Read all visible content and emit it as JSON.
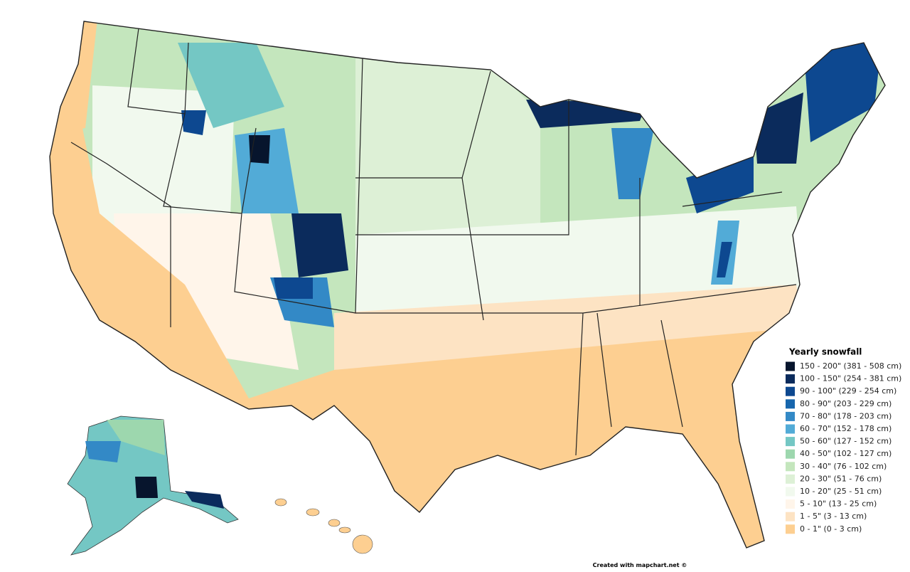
{
  "legend": {
    "title": "Yearly snowfall",
    "items": [
      {
        "label": "150 - 200\" (381 - 508 cm)",
        "color": "#07152d"
      },
      {
        "label": "100 - 150\" (254 - 381 cm)",
        "color": "#0b2b5c"
      },
      {
        "label": "90 - 100\" (229 - 254 cm)",
        "color": "#0d4890"
      },
      {
        "label": "80 - 90\" (203 - 229 cm)",
        "color": "#1766ad"
      },
      {
        "label": "70 - 80\" (178 - 203 cm)",
        "color": "#3389c6"
      },
      {
        "label": "60 - 70\" (152 - 178 cm)",
        "color": "#52abd7"
      },
      {
        "label": "50 - 60\" (127 - 152 cm)",
        "color": "#74c7c4"
      },
      {
        "label": "40 - 50\" (102 - 127 cm)",
        "color": "#9dd7ae"
      },
      {
        "label": "30 - 40\" (76 - 102 cm)",
        "color": "#c4e6bd"
      },
      {
        "label": "20 - 30\" (51 - 76 cm)",
        "color": "#ddf0d6"
      },
      {
        "label": "10 - 20\" (25 - 51 cm)",
        "color": "#f1f9ee"
      },
      {
        "label": "5 - 10\" (13 - 25 cm)",
        "color": "#fff5ea"
      },
      {
        "label": "1 - 5\" (3 - 13 cm)",
        "color": "#fde3c3"
      },
      {
        "label": "0 - 1\" (0 - 3 cm)",
        "color": "#fdcf91"
      }
    ]
  },
  "credit": "Created with mapchart.net ©"
}
